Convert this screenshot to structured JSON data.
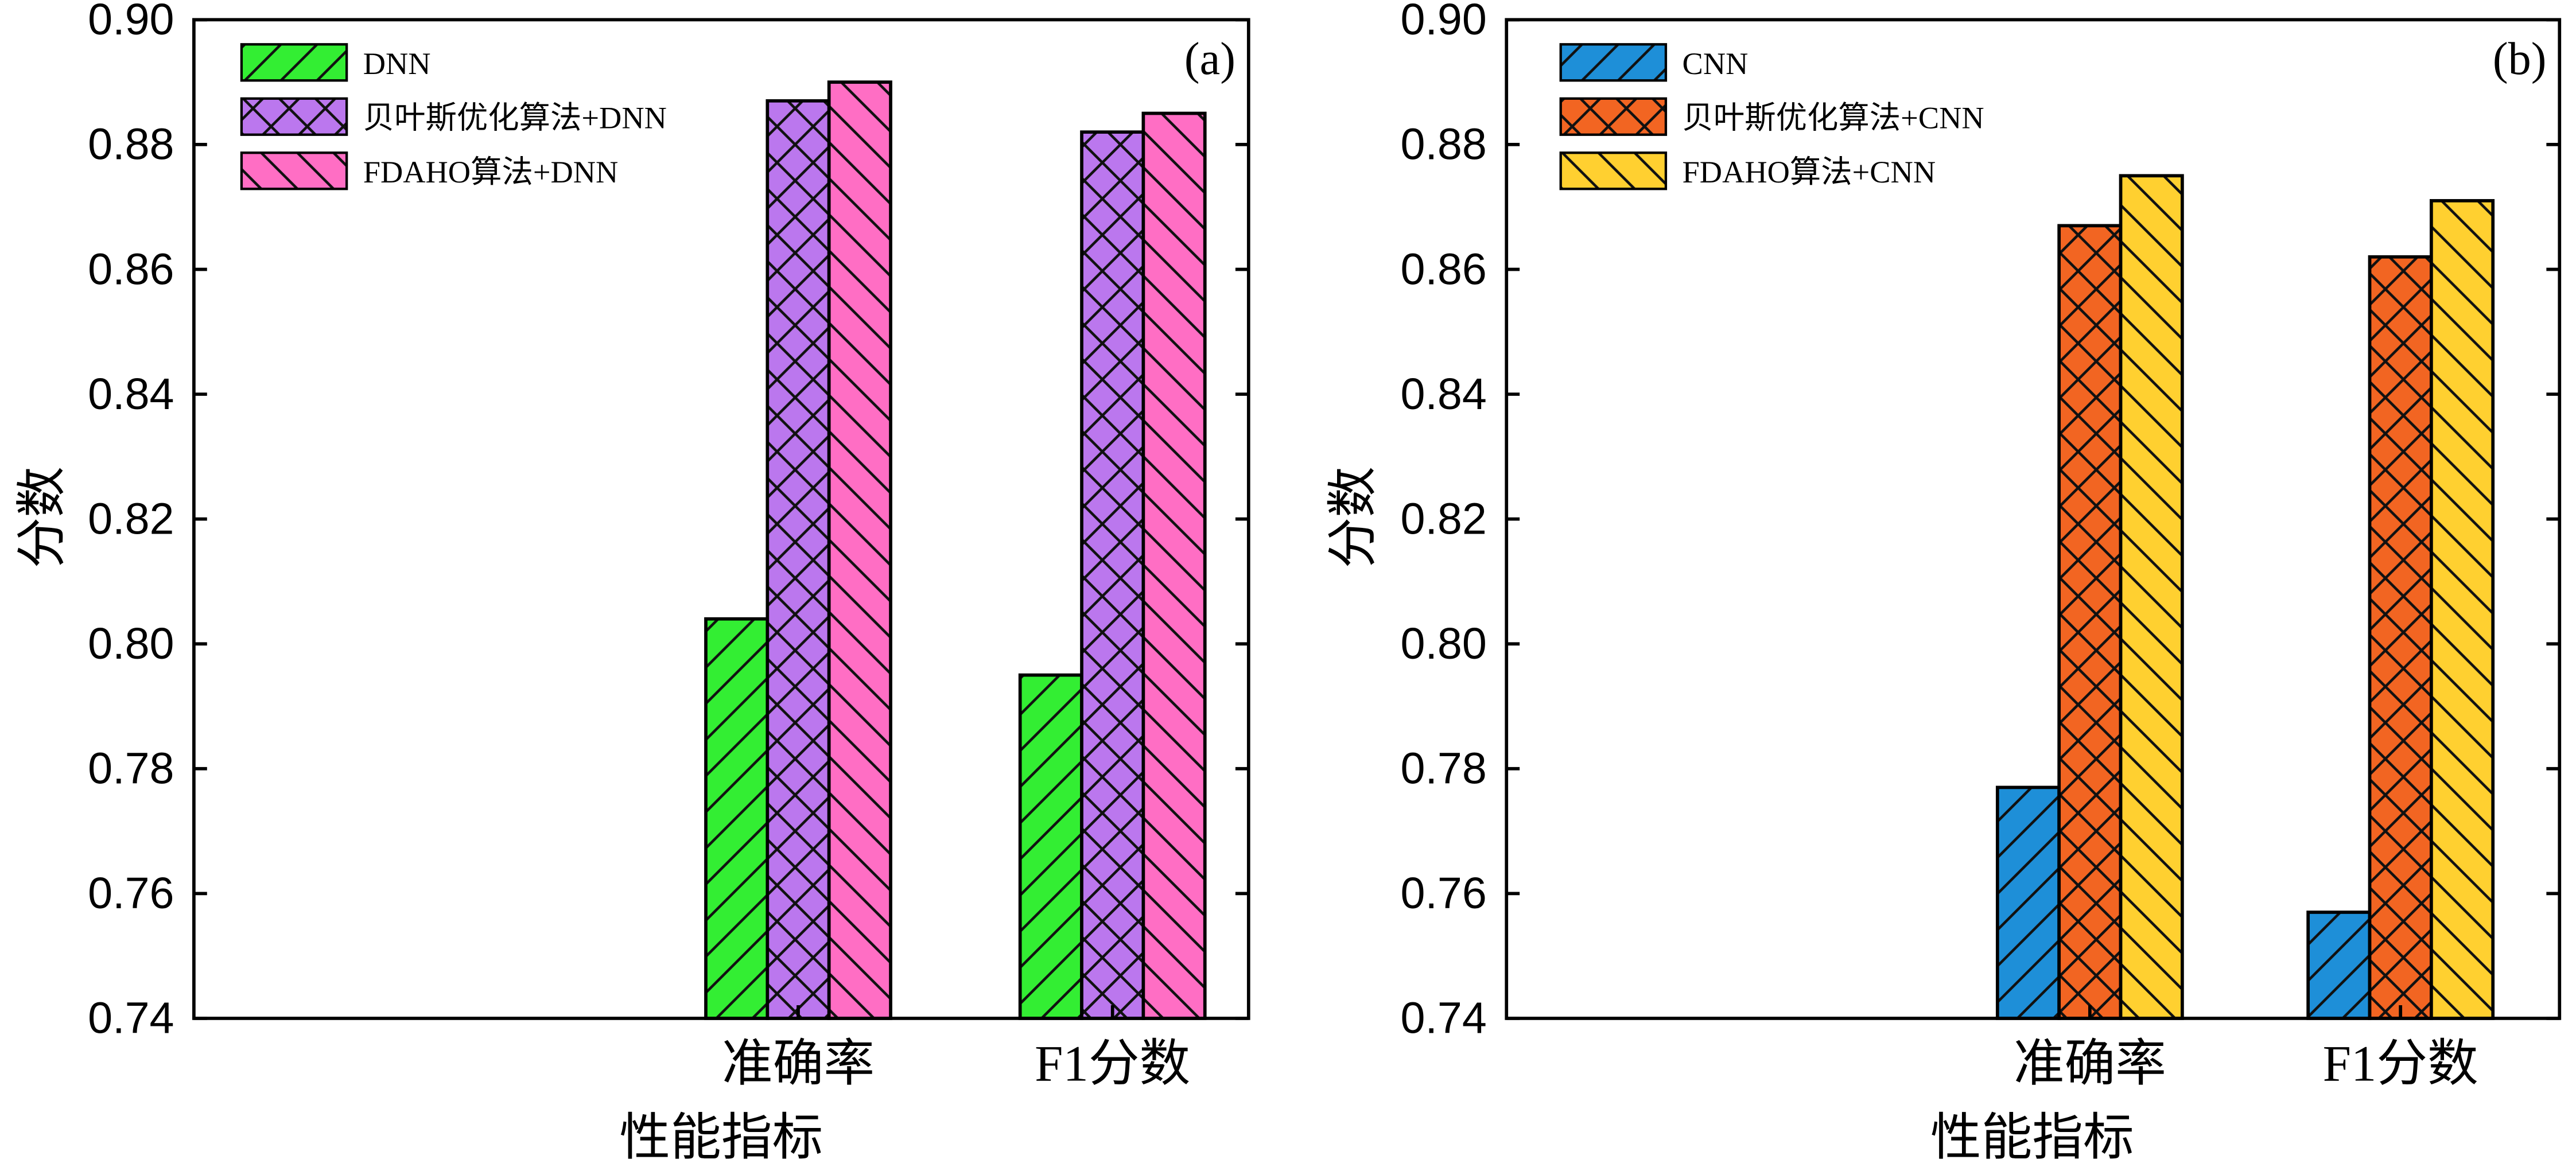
{
  "chart_data": [
    {
      "type": "bar",
      "panel_label": "(a)",
      "categories": [
        "准确率",
        "F1分数"
      ],
      "xlabel": "性能指标",
      "ylabel": "分数",
      "ylim": [
        0.74,
        0.9
      ],
      "yticks": [
        "0.74",
        "0.76",
        "0.78",
        "0.80",
        "0.82",
        "0.84",
        "0.86",
        "0.88",
        "0.90"
      ],
      "grid": false,
      "legend_position": "top-left",
      "series": [
        {
          "name": "DNN",
          "values": [
            0.804,
            0.795
          ],
          "color": "#33ee33",
          "hatch": "forward"
        },
        {
          "name": "贝叶斯优化算法+DNN",
          "values": [
            0.887,
            0.882
          ],
          "color": "#bb77ee",
          "hatch": "cross"
        },
        {
          "name": "FDAHO算法+DNN",
          "values": [
            0.89,
            0.885
          ],
          "color": "#ff6ec4",
          "hatch": "back"
        }
      ]
    },
    {
      "type": "bar",
      "panel_label": "(b)",
      "categories": [
        "准确率",
        "F1分数"
      ],
      "xlabel": "性能指标",
      "ylabel": "分数",
      "ylim": [
        0.74,
        0.9
      ],
      "yticks": [
        "0.74",
        "0.76",
        "0.78",
        "0.80",
        "0.82",
        "0.84",
        "0.86",
        "0.88",
        "0.90"
      ],
      "grid": false,
      "legend_position": "top-left",
      "series": [
        {
          "name": "CNN",
          "values": [
            0.777,
            0.757
          ],
          "color": "#1e8fd8",
          "hatch": "forward"
        },
        {
          "name": "贝叶斯优化算法+CNN",
          "values": [
            0.867,
            0.862
          ],
          "color": "#f26522",
          "hatch": "cross"
        },
        {
          "name": "FDAHO算法+CNN",
          "values": [
            0.875,
            0.871
          ],
          "color": "#ffd030",
          "hatch": "back"
        }
      ]
    }
  ]
}
